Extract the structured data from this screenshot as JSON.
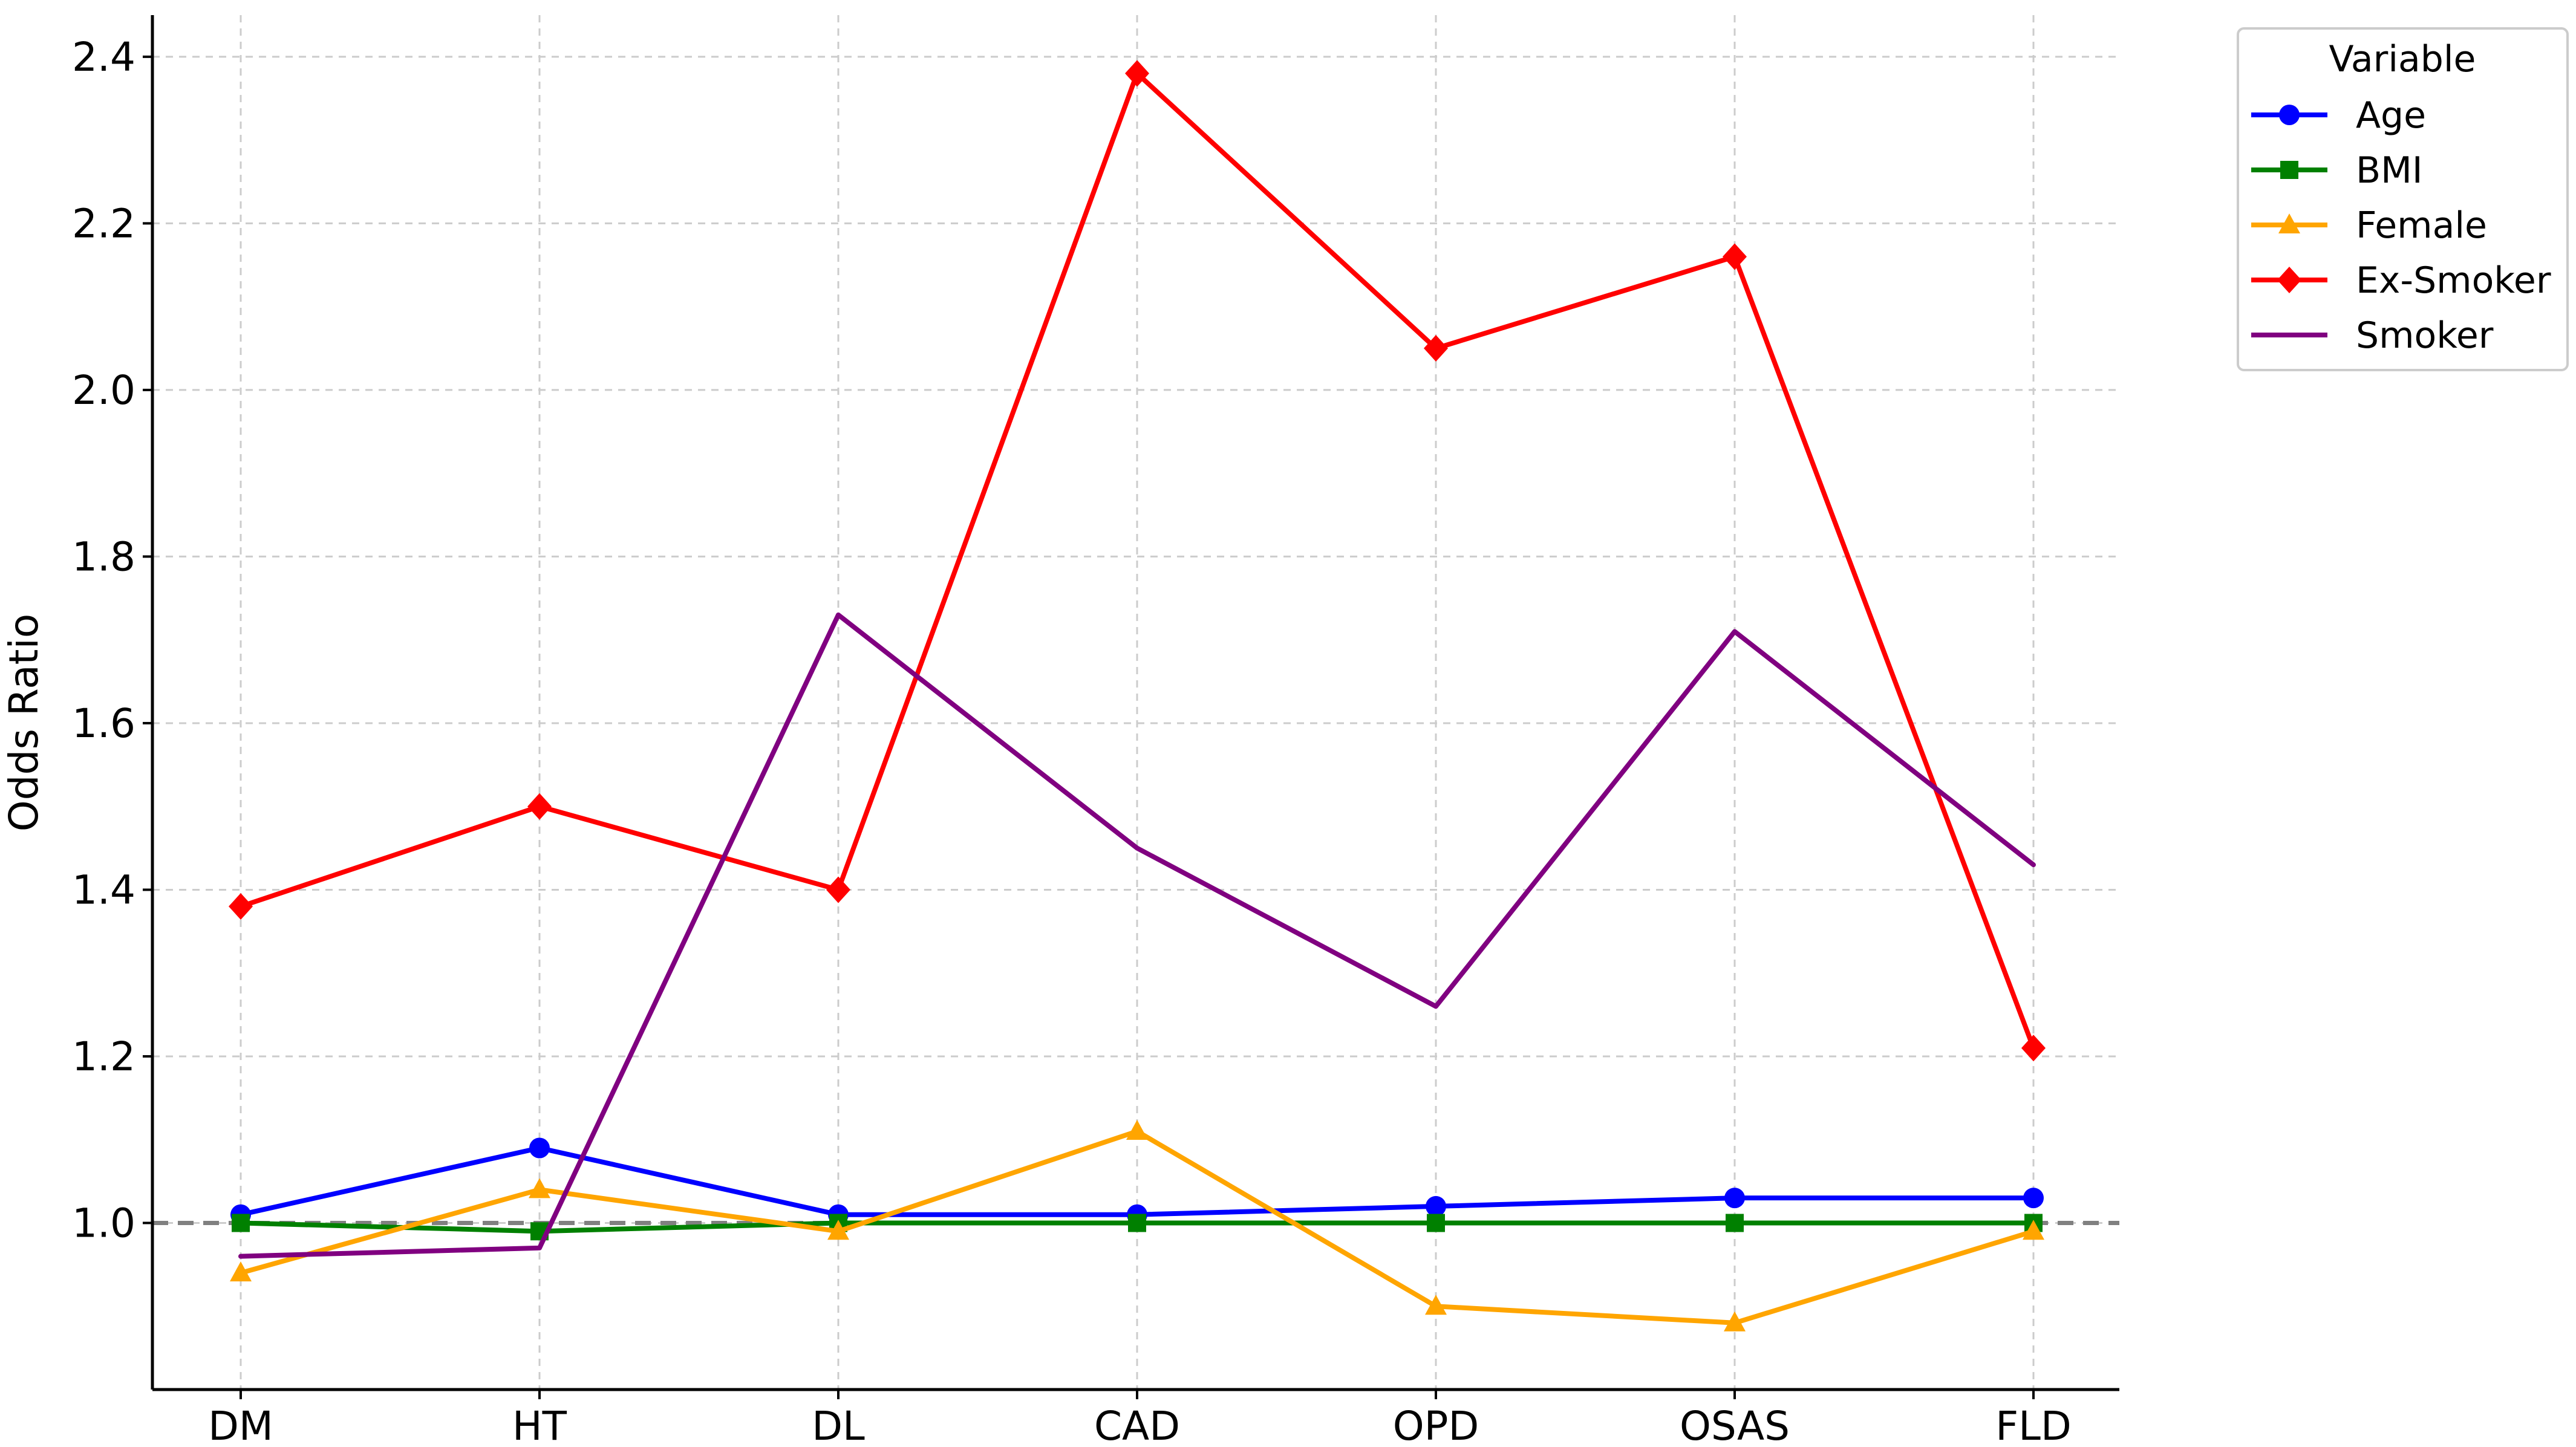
{
  "chart_data": {
    "type": "line",
    "categories": [
      "DM",
      "HT",
      "DL",
      "CAD",
      "OPD",
      "OSAS",
      "FLD"
    ],
    "ylabel": "Odds Ratio",
    "xlabel": "",
    "ylim": [
      0.8,
      2.45
    ],
    "yticks": [
      1.0,
      1.2,
      1.4,
      1.6,
      1.8,
      2.0,
      2.2,
      2.4
    ],
    "ytick_labels": [
      "1.0",
      "1.2",
      "1.4",
      "1.6",
      "1.8",
      "2.0",
      "2.2",
      "2.4"
    ],
    "grid": true,
    "reference_line": {
      "y": 1.0,
      "style": "dashed",
      "color": "#808080"
    },
    "legend": {
      "title": "Variable",
      "position": "outside-top-right"
    },
    "series": [
      {
        "name": "Age",
        "color": "#0000ff",
        "marker": "circle",
        "values": [
          1.01,
          1.09,
          1.01,
          1.01,
          1.02,
          1.03,
          1.03
        ]
      },
      {
        "name": "BMI",
        "color": "#008000",
        "marker": "square",
        "values": [
          1.0,
          0.99,
          1.0,
          1.0,
          1.0,
          1.0,
          1.0
        ]
      },
      {
        "name": "Female",
        "color": "#ffa500",
        "marker": "triangle",
        "values": [
          0.94,
          1.04,
          0.99,
          1.11,
          0.9,
          0.88,
          0.99
        ]
      },
      {
        "name": "Ex-Smoker",
        "color": "#ff0000",
        "marker": "diamond",
        "values": [
          1.38,
          1.5,
          1.4,
          2.38,
          2.05,
          2.16,
          1.21
        ]
      },
      {
        "name": "Smoker",
        "color": "#800080",
        "marker": "none",
        "values": [
          0.96,
          0.97,
          1.73,
          1.45,
          1.26,
          1.71,
          1.43
        ]
      }
    ]
  }
}
